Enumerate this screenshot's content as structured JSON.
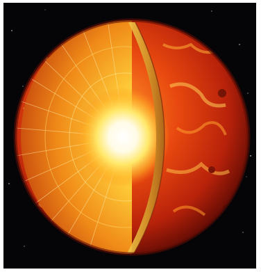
{
  "image": {
    "subject": "sun-cutaway-illustration",
    "colors": {
      "space": "#050508",
      "surface_dark": "#8a1208",
      "surface_mid": "#d8360c",
      "surface_bright": "#ff8a1a",
      "core_white": "#ffffff",
      "core_yellow": "#ffe75a",
      "cut_face": "#e8b23a"
    }
  }
}
